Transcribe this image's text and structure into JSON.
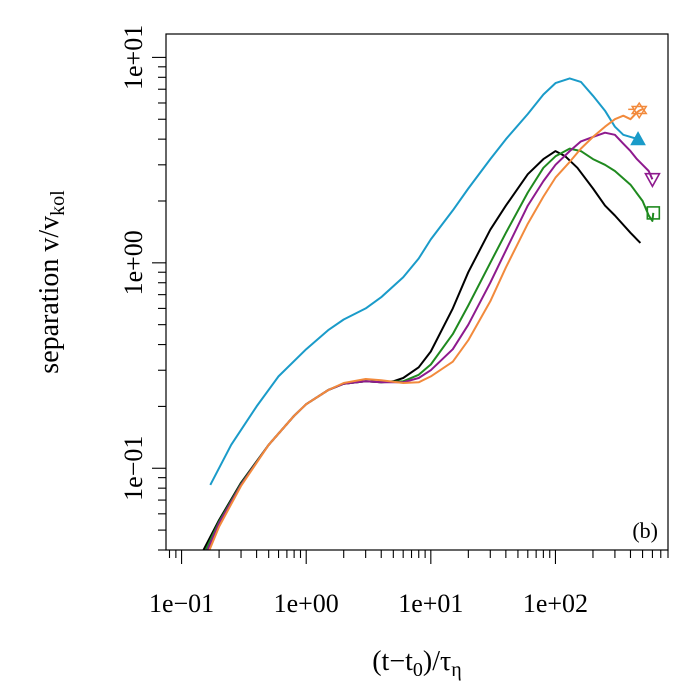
{
  "chart_data": {
    "type": "line",
    "panel_label": "(b)",
    "xlabel": {
      "main": "(t−t",
      "sub1": "0",
      "mid": ")/τ",
      "sub2": "η"
    },
    "ylabel": {
      "main": "separation v/v",
      "sub": "kol"
    },
    "x_scale": "log",
    "y_scale": "log",
    "xlim": [
      0.075,
      800
    ],
    "ylim": [
      0.04,
      13
    ],
    "x_major_ticks": [
      0.1,
      1,
      10,
      100
    ],
    "x_tick_labels": [
      "1e−01",
      "1e+00",
      "1e+01",
      "1e+02"
    ],
    "y_major_ticks": [
      0.1,
      1,
      10
    ],
    "y_tick_labels": [
      "1e−01",
      "1e+00",
      "1e+01"
    ],
    "grid": false,
    "series": [
      {
        "color": "#1a9bc9",
        "marker": "filled-triangle-up",
        "marker_point": [
          460,
          4.0
        ],
        "points": [
          [
            0.17,
            0.083
          ],
          [
            0.25,
            0.13
          ],
          [
            0.4,
            0.2
          ],
          [
            0.6,
            0.28
          ],
          [
            1,
            0.38
          ],
          [
            1.5,
            0.47
          ],
          [
            2,
            0.53
          ],
          [
            3,
            0.6
          ],
          [
            4,
            0.68
          ],
          [
            6,
            0.85
          ],
          [
            8,
            1.05
          ],
          [
            10,
            1.3
          ],
          [
            15,
            1.8
          ],
          [
            20,
            2.3
          ],
          [
            30,
            3.2
          ],
          [
            40,
            4.0
          ],
          [
            60,
            5.3
          ],
          [
            80,
            6.6
          ],
          [
            100,
            7.5
          ],
          [
            130,
            7.9
          ],
          [
            160,
            7.6
          ],
          [
            200,
            6.5
          ],
          [
            250,
            5.5
          ],
          [
            300,
            4.6
          ],
          [
            350,
            4.2
          ],
          [
            400,
            4.1
          ],
          [
            460,
            4.0
          ]
        ]
      },
      {
        "color": "#000000",
        "marker": "none",
        "points": [
          [
            0.15,
            0.04
          ],
          [
            0.2,
            0.056
          ],
          [
            0.3,
            0.085
          ],
          [
            0.5,
            0.13
          ],
          [
            0.8,
            0.18
          ],
          [
            1,
            0.205
          ],
          [
            1.5,
            0.24
          ],
          [
            2,
            0.258
          ],
          [
            3,
            0.265
          ],
          [
            4,
            0.262
          ],
          [
            5,
            0.265
          ],
          [
            6,
            0.275
          ],
          [
            8,
            0.31
          ],
          [
            10,
            0.37
          ],
          [
            15,
            0.6
          ],
          [
            20,
            0.9
          ],
          [
            30,
            1.45
          ],
          [
            40,
            1.9
          ],
          [
            60,
            2.7
          ],
          [
            80,
            3.2
          ],
          [
            100,
            3.5
          ],
          [
            120,
            3.3
          ],
          [
            150,
            2.9
          ],
          [
            200,
            2.3
          ],
          [
            250,
            1.9
          ],
          [
            300,
            1.7
          ],
          [
            400,
            1.4
          ],
          [
            450,
            1.3
          ],
          [
            480,
            1.25
          ]
        ]
      },
      {
        "color": "#1f8a1f",
        "marker": "open-square",
        "marker_point": [
          610,
          1.75
        ],
        "points": [
          [
            0.15,
            0.038
          ],
          [
            0.2,
            0.055
          ],
          [
            0.3,
            0.084
          ],
          [
            0.5,
            0.13
          ],
          [
            0.8,
            0.18
          ],
          [
            1,
            0.205
          ],
          [
            1.5,
            0.24
          ],
          [
            2,
            0.258
          ],
          [
            3,
            0.265
          ],
          [
            4,
            0.262
          ],
          [
            6,
            0.265
          ],
          [
            8,
            0.285
          ],
          [
            10,
            0.32
          ],
          [
            15,
            0.45
          ],
          [
            20,
            0.62
          ],
          [
            30,
            1.0
          ],
          [
            40,
            1.4
          ],
          [
            60,
            2.2
          ],
          [
            80,
            2.9
          ],
          [
            100,
            3.3
          ],
          [
            130,
            3.6
          ],
          [
            160,
            3.5
          ],
          [
            200,
            3.2
          ],
          [
            250,
            3.0
          ],
          [
            300,
            2.8
          ],
          [
            400,
            2.4
          ],
          [
            500,
            2.0
          ],
          [
            560,
            1.7
          ],
          [
            600,
            1.6
          ],
          [
            610,
            1.75
          ]
        ]
      },
      {
        "color": "#8e1a8e",
        "marker": "open-triangle-down",
        "marker_point": [
          600,
          2.55
        ],
        "points": [
          [
            0.15,
            0.036
          ],
          [
            0.2,
            0.054
          ],
          [
            0.3,
            0.083
          ],
          [
            0.5,
            0.13
          ],
          [
            0.8,
            0.18
          ],
          [
            1,
            0.205
          ],
          [
            1.5,
            0.24
          ],
          [
            2,
            0.258
          ],
          [
            3,
            0.265
          ],
          [
            4,
            0.262
          ],
          [
            6,
            0.262
          ],
          [
            8,
            0.275
          ],
          [
            10,
            0.3
          ],
          [
            15,
            0.38
          ],
          [
            20,
            0.5
          ],
          [
            30,
            0.8
          ],
          [
            40,
            1.15
          ],
          [
            60,
            1.9
          ],
          [
            80,
            2.5
          ],
          [
            100,
            3.0
          ],
          [
            130,
            3.5
          ],
          [
            160,
            3.9
          ],
          [
            200,
            4.1
          ],
          [
            250,
            4.3
          ],
          [
            300,
            4.2
          ],
          [
            350,
            3.8
          ],
          [
            400,
            3.5
          ],
          [
            450,
            3.2
          ],
          [
            500,
            3.0
          ],
          [
            560,
            2.8
          ],
          [
            600,
            2.55
          ]
        ]
      },
      {
        "color": "#f28a3c",
        "marker": "open-star",
        "marker_point": [
          470,
          5.5
        ],
        "points": [
          [
            0.15,
            0.034
          ],
          [
            0.2,
            0.052
          ],
          [
            0.3,
            0.082
          ],
          [
            0.5,
            0.13
          ],
          [
            0.8,
            0.18
          ],
          [
            1,
            0.205
          ],
          [
            1.5,
            0.24
          ],
          [
            2,
            0.26
          ],
          [
            3,
            0.272
          ],
          [
            4,
            0.268
          ],
          [
            6,
            0.26
          ],
          [
            8,
            0.262
          ],
          [
            10,
            0.28
          ],
          [
            15,
            0.33
          ],
          [
            20,
            0.42
          ],
          [
            30,
            0.65
          ],
          [
            40,
            0.95
          ],
          [
            60,
            1.55
          ],
          [
            80,
            2.1
          ],
          [
            100,
            2.6
          ],
          [
            130,
            3.1
          ],
          [
            160,
            3.6
          ],
          [
            200,
            4.1
          ],
          [
            250,
            4.6
          ],
          [
            300,
            5.0
          ],
          [
            350,
            5.2
          ],
          [
            400,
            5.0
          ],
          [
            450,
            5.4
          ],
          [
            470,
            5.5
          ],
          [
            500,
            5.6
          ]
        ]
      }
    ]
  }
}
